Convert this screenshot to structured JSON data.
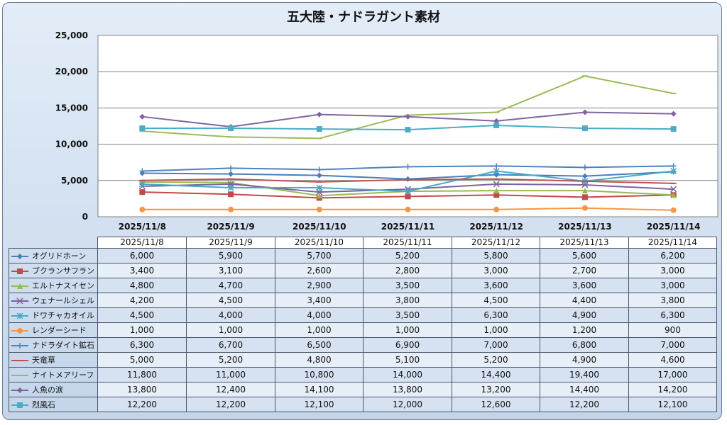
{
  "chart_data": {
    "type": "line",
    "title": "五大陸・ナドラガント素材",
    "categories": [
      "2025/11/8",
      "2025/11/9",
      "2025/11/10",
      "2025/11/11",
      "2025/11/12",
      "2025/11/13",
      "2025/11/14"
    ],
    "ylim": [
      0,
      25000
    ],
    "yticks": [
      "0",
      "5,000",
      "10,000",
      "15,000",
      "20,000",
      "25,000"
    ],
    "grid": true,
    "legend": "data-table",
    "series": [
      {
        "name": "オグリドホーン",
        "color": "#4a7ebb",
        "marker": "diamond",
        "values": [
          6000,
          5900,
          5700,
          5200,
          5800,
          5600,
          6200
        ],
        "labels": [
          "6,000",
          "5,900",
          "5,700",
          "5,200",
          "5,800",
          "5,600",
          "6,200"
        ]
      },
      {
        "name": "ブクランサフラン",
        "color": "#be4b48",
        "marker": "square",
        "values": [
          3400,
          3100,
          2600,
          2800,
          3000,
          2700,
          3000
        ],
        "labels": [
          "3,400",
          "3,100",
          "2,600",
          "2,800",
          "3,000",
          "2,700",
          "3,000"
        ]
      },
      {
        "name": "エルトナスイセン",
        "color": "#98b954",
        "marker": "triangle",
        "values": [
          4800,
          4700,
          2900,
          3500,
          3600,
          3600,
          3000
        ],
        "labels": [
          "4,800",
          "4,700",
          "2,900",
          "3,500",
          "3,600",
          "3,600",
          "3,000"
        ]
      },
      {
        "name": "ウェナールシェル",
        "color": "#7d60a0",
        "marker": "x",
        "values": [
          4200,
          4500,
          3400,
          3800,
          4500,
          4400,
          3800
        ],
        "labels": [
          "4,200",
          "4,500",
          "3,400",
          "3,800",
          "4,500",
          "4,400",
          "3,800"
        ]
      },
      {
        "name": "ドワチャカオイル",
        "color": "#46aac5",
        "marker": "star",
        "values": [
          4500,
          4000,
          4000,
          3500,
          6300,
          4900,
          6300
        ],
        "labels": [
          "4,500",
          "4,000",
          "4,000",
          "3,500",
          "6,300",
          "4,900",
          "6,300"
        ]
      },
      {
        "name": "レンダーシード",
        "color": "#f79646",
        "marker": "circle",
        "values": [
          1000,
          1000,
          1000,
          1000,
          1000,
          1200,
          900
        ],
        "labels": [
          "1,000",
          "1,000",
          "1,000",
          "1,000",
          "1,000",
          "1,200",
          "900"
        ]
      },
      {
        "name": "ナドラダイト鉱石",
        "color": "#4f81bd",
        "marker": "plus",
        "values": [
          6300,
          6700,
          6500,
          6900,
          7000,
          6800,
          7000
        ],
        "labels": [
          "6,300",
          "6,700",
          "6,500",
          "6,900",
          "7,000",
          "6,800",
          "7,000"
        ]
      },
      {
        "name": "天竜草",
        "color": "#c0504d",
        "marker": "dash",
        "values": [
          5000,
          5200,
          4800,
          5100,
          5200,
          4900,
          4600
        ],
        "labels": [
          "5,000",
          "5,200",
          "4,800",
          "5,100",
          "5,200",
          "4,900",
          "4,600"
        ]
      },
      {
        "name": "ナイトメアリーフ",
        "color": "#9bbb59",
        "marker": "dash",
        "values": [
          11800,
          11000,
          10800,
          14000,
          14400,
          19400,
          17000
        ],
        "labels": [
          "11,800",
          "11,000",
          "10,800",
          "14,000",
          "14,400",
          "19,400",
          "17,000"
        ]
      },
      {
        "name": "人魚の涙",
        "color": "#8064a2",
        "marker": "diamond",
        "values": [
          13800,
          12400,
          14100,
          13800,
          13200,
          14400,
          14200
        ],
        "labels": [
          "13,800",
          "12,400",
          "14,100",
          "13,800",
          "13,200",
          "14,400",
          "14,200"
        ]
      },
      {
        "name": "烈風石",
        "color": "#4bacc6",
        "marker": "square",
        "values": [
          12200,
          12200,
          12100,
          12000,
          12600,
          12200,
          12100
        ],
        "labels": [
          "12,200",
          "12,200",
          "12,100",
          "12,000",
          "12,600",
          "12,200",
          "12,100"
        ]
      }
    ]
  }
}
